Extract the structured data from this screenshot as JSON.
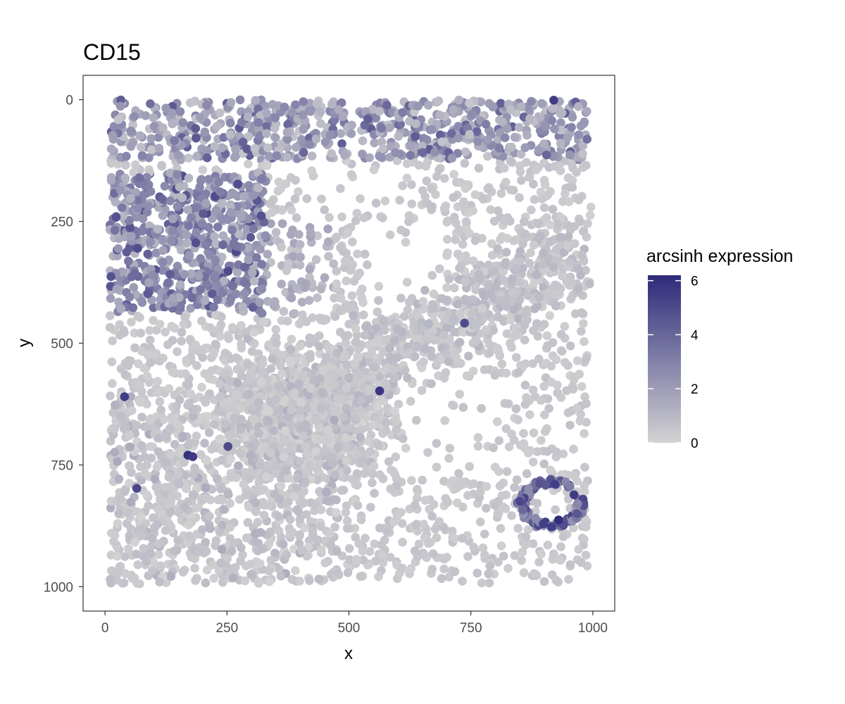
{
  "chart_data": {
    "type": "scatter",
    "title": "CD15",
    "xlabel": "x",
    "ylabel": "y",
    "xlim": [
      -45,
      1045
    ],
    "ylim": [
      -50,
      1050
    ],
    "y_reversed": true,
    "x_ticks": [
      0,
      250,
      500,
      750,
      1000
    ],
    "y_ticks": [
      0,
      250,
      500,
      750,
      1000
    ],
    "grid": false,
    "panel_border": true,
    "legend": {
      "title": "arcsinh expression",
      "position": "right",
      "type": "colorbar",
      "range": [
        0,
        6.2
      ],
      "ticks": [
        0,
        2,
        4,
        6
      ],
      "color_low": "#d3d3d3",
      "color_high": "#2e2a7a"
    },
    "point_density_regions": [
      {
        "region": "top band",
        "x": [
          10,
          990
        ],
        "y": [
          0,
          120
        ],
        "expression": [
          0.5,
          4.5
        ]
      },
      {
        "region": "upper-left cluster",
        "x": [
          10,
          330
        ],
        "y": [
          150,
          430
        ],
        "expression": [
          1.0,
          5.0
        ]
      },
      {
        "region": "central dense cluster",
        "x": [
          230,
          560
        ],
        "y": [
          480,
          800
        ],
        "expression": [
          0.0,
          1.2
        ]
      },
      {
        "region": "diagonal band",
        "x": [
          330,
          980
        ],
        "y": [
          200,
          560
        ],
        "expression": [
          0.0,
          1.2
        ]
      },
      {
        "region": "lower-left spread",
        "x": [
          10,
          480
        ],
        "y": [
          600,
          995
        ],
        "expression": [
          0.0,
          1.5
        ]
      },
      {
        "region": "lower-right ring",
        "x": [
          850,
          990
        ],
        "y": [
          780,
          880
        ],
        "expression": [
          2.0,
          6.0
        ]
      }
    ],
    "highlighted_points": [
      {
        "x": 40,
        "y": 610,
        "value": 5.5
      },
      {
        "x": 170,
        "y": 730,
        "value": 6.0
      },
      {
        "x": 180,
        "y": 733,
        "value": 5.6
      },
      {
        "x": 65,
        "y": 798,
        "value": 5.2
      },
      {
        "x": 563,
        "y": 598,
        "value": 5.8
      },
      {
        "x": 930,
        "y": 863,
        "value": 6.0
      },
      {
        "x": 920,
        "y": 1,
        "value": 5.5
      },
      {
        "x": 737,
        "y": 459,
        "value": 5.0
      },
      {
        "x": 252,
        "y": 712,
        "value": 5.0
      }
    ]
  }
}
